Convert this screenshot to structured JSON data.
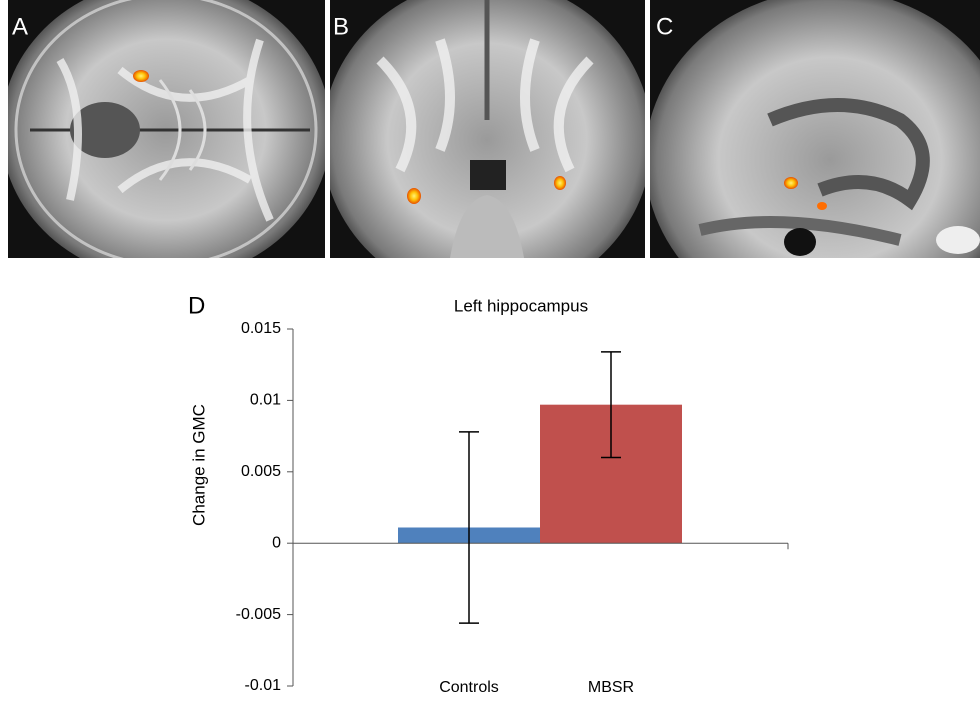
{
  "panels": [
    {
      "label": "A"
    },
    {
      "label": "B"
    },
    {
      "label": "C"
    }
  ],
  "chart_data": {
    "type": "bar",
    "panel_label": "D",
    "title": "Left hippocampus",
    "y_label": "Change in GMC",
    "categories": [
      "Controls",
      "MBSR"
    ],
    "values": [
      0.0011,
      0.0097
    ],
    "errors": [
      0.0067,
      0.0037
    ],
    "colors": [
      "#4f81bd",
      "#c0504d"
    ],
    "ylim": [
      -0.01,
      0.015
    ],
    "yticks": [
      -0.01,
      -0.005,
      0,
      0.005,
      0.01,
      0.015
    ]
  }
}
